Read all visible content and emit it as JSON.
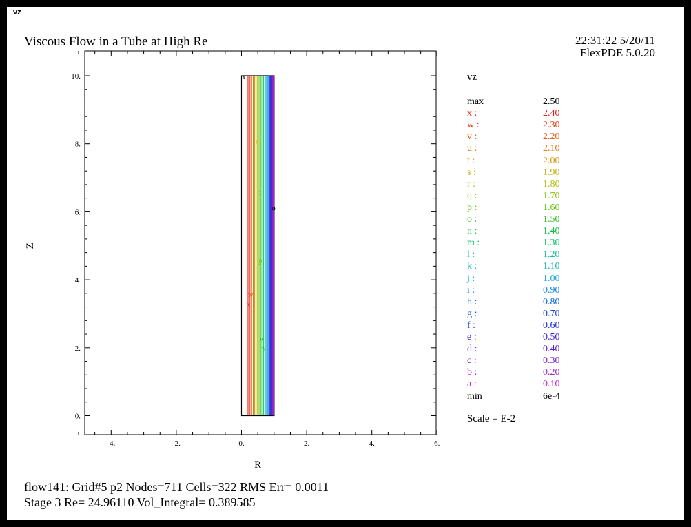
{
  "window": {
    "title": "vz"
  },
  "header": {
    "title": "Viscous Flow in a Tube at High Re",
    "timestamp": "22:31:22 5/20/11",
    "software": "FlexPDE 5.0.20"
  },
  "legend": {
    "title": "vz",
    "rows": [
      {
        "label": "max",
        "value": "2.50",
        "color": "#000000"
      },
      {
        "label": "x :",
        "value": "2.40",
        "color": "#e0201a"
      },
      {
        "label": "w :",
        "value": "2.30",
        "color": "#e83a10"
      },
      {
        "label": "v :",
        "value": "2.20",
        "color": "#e85a10"
      },
      {
        "label": "u :",
        "value": "2.10",
        "color": "#e07a10"
      },
      {
        "label": "t :",
        "value": "2.00",
        "color": "#d89a10"
      },
      {
        "label": "s :",
        "value": "1.90",
        "color": "#c8b010"
      },
      {
        "label": "r :",
        "value": "1.80",
        "color": "#b0c010"
      },
      {
        "label": "q :",
        "value": "1.70",
        "color": "#90c810"
      },
      {
        "label": "p :",
        "value": "1.60",
        "color": "#60c810"
      },
      {
        "label": "o :",
        "value": "1.50",
        "color": "#30c020"
      },
      {
        "label": "n :",
        "value": "1.40",
        "color": "#10c040"
      },
      {
        "label": "m :",
        "value": "1.30",
        "color": "#10c070"
      },
      {
        "label": "l :",
        "value": "1.20",
        "color": "#10c0a0"
      },
      {
        "label": "k :",
        "value": "1.10",
        "color": "#10b8c0"
      },
      {
        "label": "j :",
        "value": "1.00",
        "color": "#10a8d8"
      },
      {
        "label": "i :",
        "value": "0.90",
        "color": "#1088e0"
      },
      {
        "label": "h :",
        "value": "0.80",
        "color": "#1068e0"
      },
      {
        "label": "g :",
        "value": "0.70",
        "color": "#1048d8"
      },
      {
        "label": "f :",
        "value": "0.60",
        "color": "#2030d0"
      },
      {
        "label": "e :",
        "value": "0.50",
        "color": "#4020d0"
      },
      {
        "label": "d :",
        "value": "0.40",
        "color": "#6020d0"
      },
      {
        "label": "c :",
        "value": "0.30",
        "color": "#8020d0"
      },
      {
        "label": "b :",
        "value": "0.20",
        "color": "#a020d0"
      },
      {
        "label": "a :",
        "value": "0.10",
        "color": "#c020d0"
      },
      {
        "label": "min",
        "value": "6e-4",
        "color": "#000000"
      }
    ],
    "scale": "Scale = E-2"
  },
  "footer": {
    "line1": "flow141:  Grid#5  p2  Nodes=711 Cells=322 RMS Err= 0.0011",
    "line2": "Stage 3   Re=  24.96110  Vol_Integral=  0.389585"
  },
  "chart_data": {
    "type": "contour",
    "xlabel": "R",
    "ylabel": "Z",
    "xlim": [
      -5,
      6
    ],
    "ylim": [
      0,
      10
    ],
    "xticks": [
      -4,
      -2,
      0,
      2,
      4,
      6
    ],
    "xtick_labels": [
      "-4.",
      "-2.",
      "0.",
      "2.",
      "4.",
      "6."
    ],
    "yticks": [
      0,
      2,
      4,
      6,
      8,
      10
    ],
    "ytick_labels": [
      "0.",
      "2.",
      "4.",
      "6.",
      "8.",
      "10."
    ],
    "domain": {
      "r": [
        0,
        1
      ],
      "z": [
        0,
        10
      ]
    },
    "levels": [
      2.4,
      2.3,
      2.2,
      2.1,
      2.0,
      1.9,
      1.8,
      1.7,
      1.6,
      1.5,
      1.4,
      1.3,
      1.2,
      1.1,
      1.0,
      0.9,
      0.8,
      0.7,
      0.6,
      0.5,
      0.4,
      0.3,
      0.2,
      0.1
    ],
    "level_labels": [
      "x",
      "w",
      "v",
      "u",
      "t",
      "s",
      "r",
      "q",
      "p",
      "o",
      "n",
      "m",
      "l",
      "k",
      "j",
      "i",
      "h",
      "g",
      "f",
      "e",
      "d",
      "c",
      "b",
      "a"
    ],
    "contour_r": [
      0.2,
      0.26,
      0.31,
      0.36,
      0.4,
      0.44,
      0.48,
      0.52,
      0.56,
      0.6,
      0.64,
      0.68,
      0.72,
      0.75,
      0.78,
      0.81,
      0.84,
      0.87,
      0.89,
      0.91,
      0.93,
      0.95,
      0.97,
      0.99
    ],
    "max": 2.5,
    "min": "6e-4",
    "max_marker": {
      "r": 0,
      "z": 10,
      "label": "x"
    },
    "min_marker": {
      "r": 1,
      "z": 6.1,
      "label": "o"
    }
  }
}
